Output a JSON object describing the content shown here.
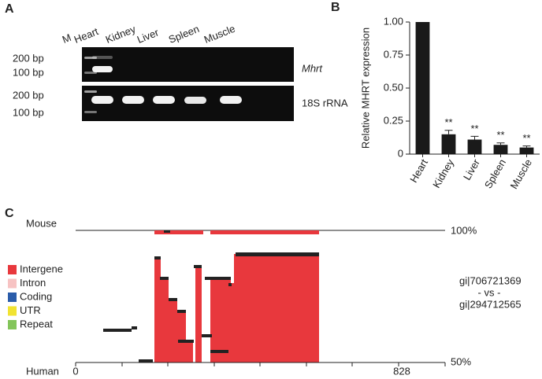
{
  "panel_a": {
    "label": "A",
    "lanes": [
      "M",
      "Heart",
      "Kidney",
      "Liver",
      "Spleen",
      "Muscle"
    ],
    "gels": [
      {
        "gene": "Mhrt",
        "sizes": [
          "200 bp",
          "100 bp"
        ]
      },
      {
        "gene": "18S rRNA",
        "sizes": [
          "200 bp",
          "100 bp"
        ]
      }
    ]
  },
  "chart_data": {
    "type": "bar",
    "label": "B",
    "ylabel": "Relative MHRT expression",
    "categories": [
      "Heart",
      "Kidney",
      "Liver",
      "Spleen",
      "Muscle"
    ],
    "values": [
      1.0,
      0.15,
      0.11,
      0.07,
      0.05
    ],
    "errors": [
      null,
      0.03,
      0.025,
      0.015,
      0.012
    ],
    "significance": [
      null,
      "**",
      "**",
      "**",
      "**"
    ],
    "color": "#1a1a1a",
    "ylim": [
      0,
      1.0
    ],
    "yticks": [
      0,
      0.25,
      {
        "value": 0.5,
        "label": "0.50"
      },
      0.75,
      {
        "value": 1.0,
        "label": "1.00"
      }
    ]
  },
  "panel_c": {
    "label": "C",
    "mouse": "Mouse",
    "human": "Human",
    "top_percent": "100%",
    "bottom_percent": "50%",
    "x_start": "0",
    "x_end": "828",
    "legend": [
      {
        "name": "Intergene",
        "color": "#e8383d"
      },
      {
        "name": "Intron",
        "color": "#f7c3c3"
      },
      {
        "name": "Coding",
        "color": "#2a5caa"
      },
      {
        "name": "UTR",
        "color": "#f1e332"
      },
      {
        "name": "Repeat",
        "color": "#83c55a"
      }
    ],
    "comparison": [
      "gi|706721369",
      "- vs -",
      "gi|294712565"
    ]
  }
}
